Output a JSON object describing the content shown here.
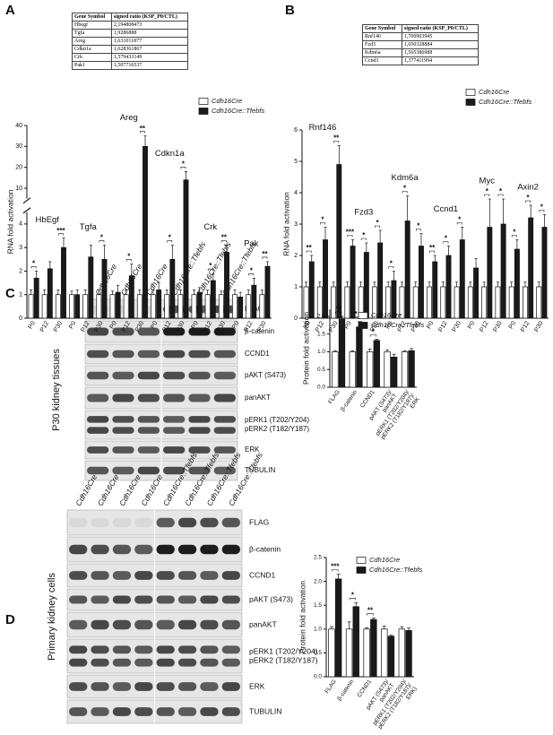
{
  "panels": [
    "A",
    "B",
    "C",
    "D"
  ],
  "tables": [
    {
      "header": [
        "Gene Symbol",
        "signed ratio (KSP_P0/CTL)"
      ],
      "rows": [
        [
          "Hbegf",
          "2,194808473"
        ],
        [
          "Tgfa",
          "1,9286888"
        ],
        [
          "Areg",
          "1,631011877"
        ],
        [
          "Cdkn1a",
          "1,628361867"
        ],
        [
          "Crk",
          "1,579433149"
        ],
        [
          "Pak1",
          "1,507716537"
        ]
      ]
    },
    {
      "header": [
        "Gene Symbol",
        "signed ratio (KSP_P0/CTL)"
      ],
      "rows": [
        [
          "Rnf146",
          "1,700903945"
        ],
        [
          "Fzd3",
          "1,650328884"
        ],
        [
          "Kdm6a",
          "1,565386988"
        ],
        [
          "Ccnd1",
          "1,377411994"
        ]
      ]
    }
  ],
  "blots": [
    {
      "sample_label": "P30 kidney tissues",
      "lanes": [
        "Cdh16Cre",
        "Cdh16Cre",
        "Cdh16Cre",
        "Cdh16Cre::Tfebfs",
        "Cdh16Cre::Tfebfs",
        "Cdh16Cre::Tfebfs"
      ],
      "bands": [
        "FLAG",
        "β-catenin",
        "CCND1",
        "pAKT (S473)",
        "panAKT",
        [
          "pERK1 (T202/Y204)",
          "pERK2 (T182/Y187)"
        ],
        "ERK",
        "TUBULIN"
      ]
    },
    {
      "sample_label": "Primary kidney cells",
      "lanes": [
        "Cdh16Cre",
        "Cdh16Cre",
        "Cdh16Cre",
        "Cdh16Cre",
        "Cdh16Cre::Tfebfs",
        "Cdh16Cre::Tfebfs",
        "Cdh16Cre::Tfebfs",
        "Cdh16Cre::Tfebfs"
      ],
      "bands": [
        "FLAG",
        "β-catenin",
        "CCND1",
        "pAKT (S473)",
        "panAKT",
        [
          "pERK1 (T202/Y204)",
          "pERK2 (T182/Y187)"
        ],
        "ERK",
        "TUBULIN"
      ]
    }
  ],
  "chart_data": [
    {
      "type": "bar",
      "y_label": "RNA fold activation",
      "legend": "upper right",
      "groups": [
        "HbEgf",
        "Tgfa",
        "Areg",
        "Cdkn1a",
        "Crk",
        "Pak"
      ],
      "categories": [
        "P0",
        "P12",
        "P30",
        "P0",
        "P12",
        "P30",
        "P0",
        "P12",
        "P30",
        "P0",
        "P12",
        "P30",
        "P0",
        "P12",
        "P30",
        "P0",
        "P12",
        "P30"
      ],
      "series": [
        {
          "name": "Cdh16Cre",
          "color": "#ffffff",
          "values": [
            1,
            1,
            1,
            1,
            1,
            1,
            1,
            1,
            1,
            1,
            1,
            1,
            1,
            1,
            1,
            1,
            1,
            1
          ],
          "errors": [
            0.2,
            0.2,
            0.2,
            0.15,
            0.2,
            0.2,
            0.15,
            0.2,
            0.2,
            0.2,
            0.2,
            0.2,
            0.2,
            0.2,
            0.15,
            0.2,
            0.2,
            0.2
          ]
        },
        {
          "name": "Cdh16Cre::Tfebfs",
          "color": "#1a1a1a",
          "values": [
            1.7,
            2.1,
            3.0,
            1.0,
            2.6,
            2.5,
            1.1,
            1.8,
            30,
            1.2,
            2.5,
            14,
            1.1,
            1.6,
            2.8,
            0.9,
            1.4,
            2.2
          ],
          "errors": [
            0.3,
            0.3,
            0.4,
            0.2,
            0.5,
            0.6,
            0.3,
            0.5,
            5,
            0.3,
            0.6,
            4,
            0.2,
            0.3,
            0.3,
            0.2,
            0.3,
            0.2
          ]
        }
      ],
      "significance": [
        "*",
        null,
        "***",
        null,
        null,
        "*",
        null,
        "*",
        "**",
        null,
        "*",
        "*",
        null,
        "*",
        "**",
        null,
        "*",
        "**"
      ],
      "ylim": [
        0,
        4.5
      ],
      "yticks": [
        0,
        1,
        2,
        3,
        4
      ],
      "y_break": {
        "lim": [
          5,
          40
        ],
        "ticks": [
          10,
          20,
          30,
          40
        ]
      }
    },
    {
      "type": "bar",
      "y_label": "RNA fold activation",
      "legend": "upper right",
      "groups": [
        "Rnf146",
        "Fzd3",
        "Kdm6a",
        "Ccnd1",
        "Myc",
        "Axin2"
      ],
      "categories": [
        "P0",
        "P12",
        "P30",
        "P0",
        "P12",
        "P30",
        "P0",
        "P12",
        "P30",
        "P0",
        "P12",
        "P30",
        "P0",
        "P12",
        "P30",
        "P0",
        "P12",
        "P30"
      ],
      "series": [
        {
          "name": "Cdh16Cre",
          "color": "#ffffff",
          "values": [
            1,
            1,
            1,
            1,
            1,
            1,
            1,
            1,
            1,
            1,
            1,
            1,
            1,
            1,
            1,
            1,
            1,
            1
          ],
          "errors": [
            0.15,
            0.15,
            0.15,
            0.15,
            0.15,
            0.15,
            0.15,
            0.15,
            0.15,
            0.15,
            0.15,
            0.15,
            0.15,
            0.15,
            0.15,
            0.15,
            0.15,
            0.15
          ]
        },
        {
          "name": "Cdh16Cre::Tfebfs",
          "color": "#1a1a1a",
          "values": [
            1.8,
            2.5,
            4.9,
            2.3,
            2.1,
            2.4,
            1.2,
            3.1,
            2.3,
            1.8,
            2.0,
            2.5,
            1.6,
            2.9,
            3.0,
            2.2,
            3.2,
            2.9
          ],
          "errors": [
            0.2,
            0.4,
            0.6,
            0.2,
            0.3,
            0.4,
            0.3,
            0.8,
            0.4,
            0.2,
            0.3,
            0.4,
            0.3,
            0.9,
            0.8,
            0.3,
            0.4,
            0.4
          ]
        }
      ],
      "significance": [
        "**",
        "*",
        "**",
        "***",
        "*",
        "*",
        "*",
        "*",
        "*",
        "**",
        "*",
        "*",
        null,
        "*",
        "*",
        "*",
        "*",
        "*"
      ],
      "ylim": [
        0,
        6
      ],
      "yticks": [
        0,
        1,
        2,
        3,
        4,
        5,
        6
      ]
    },
    {
      "type": "bar",
      "y_label": "Protein fold activation",
      "legend": "upper right",
      "categories": [
        "FLAG",
        "β-catenin",
        "CCND1",
        [
          "pAKT (S473)/",
          "panAKT"
        ],
        [
          "pERK1 (T202/Y204)/",
          "pERK2 (T182/Y187)/",
          "ERK"
        ]
      ],
      "series": [
        {
          "name": "Cdh16Cre",
          "color": "#ffffff",
          "values": [
            1.0,
            1.0,
            1.0,
            1.0,
            1.0
          ],
          "errors": [
            0.03,
            0.03,
            0.08,
            0.05,
            0.03
          ]
        },
        {
          "name": "Cdh16Cre::Tfebfs",
          "color": "#1a1a1a",
          "values": [
            1.92,
            1.7,
            1.32,
            0.85,
            1.03
          ],
          "errors": [
            0.08,
            0.15,
            0.03,
            0.08,
            0.06
          ]
        }
      ],
      "significance": [
        "**",
        "*",
        "*",
        null,
        null
      ],
      "ylim": [
        0,
        2.2
      ],
      "yticks": [
        {
          "value": 0,
          "label": "0.0"
        },
        0.5,
        {
          "value": 1,
          "label": "1.0"
        },
        1.5,
        {
          "value": 2,
          "label": "2.0"
        }
      ]
    },
    {
      "type": "bar",
      "y_label": "Protein fold activation",
      "legend": "upper right",
      "categories": [
        "FLAG",
        "β-catenin",
        "CCND1",
        [
          "pAKT (S473)/",
          "panAKT"
        ],
        [
          "pERK1 (T202/Y204)/",
          "pERK2 (T182/Y187)/",
          "ERK)"
        ]
      ],
      "series": [
        {
          "name": "Cdh16Cre",
          "color": "#ffffff",
          "values": [
            1.0,
            1.0,
            1.0,
            1.0,
            1.0
          ],
          "errors": [
            0.05,
            0.15,
            0.03,
            0.06,
            0.05
          ]
        },
        {
          "name": "Cdh16Cre::Tfebfs",
          "color": "#1a1a1a",
          "values": [
            2.05,
            1.47,
            1.2,
            0.85,
            0.97
          ],
          "errors": [
            0.1,
            0.08,
            0.03,
            0.02,
            0.05
          ]
        }
      ],
      "significance": [
        "***",
        "*",
        "**",
        null,
        null
      ],
      "ylim": [
        0,
        2.5
      ],
      "yticks": [
        {
          "value": 0,
          "label": "0.0"
        },
        0.5,
        {
          "value": 1,
          "label": "1.0"
        },
        1.5,
        {
          "value": 2,
          "label": "2.0"
        },
        2.5
      ]
    }
  ]
}
